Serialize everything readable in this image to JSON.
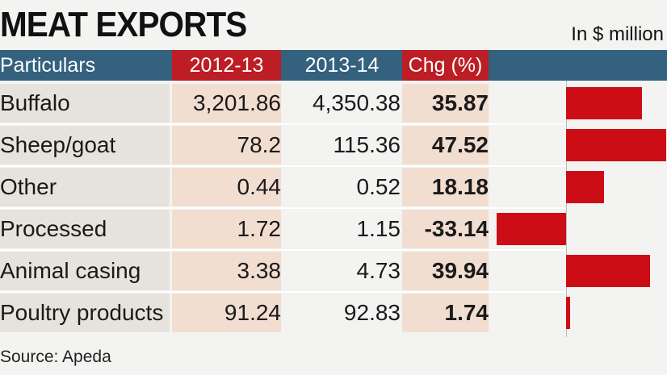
{
  "title": "MEAT EXPORTS",
  "unit": "In $ million",
  "header": {
    "particulars": "Particulars",
    "y1": "2012-13",
    "y2": "2013-14",
    "chg": "Chg (%)"
  },
  "source": "Source: Apeda",
  "colors": {
    "header_bg": "#34617e",
    "header_highlight": "#bd1d24",
    "bar": "#cc0d16"
  },
  "chart_data": {
    "type": "bar",
    "orientation": "horizontal",
    "title": "MEAT EXPORTS",
    "categories": [
      "Buffalo",
      "Sheep/goat",
      "Other",
      "Processed",
      "Animal casing",
      "Poultry products"
    ],
    "columns": [
      "2012-13",
      "2013-14",
      "Chg (%)"
    ],
    "rows": [
      {
        "label": "Buffalo",
        "y1": "3,201.86",
        "y2": "4,350.38",
        "chg": "35.87"
      },
      {
        "label": "Sheep/goat",
        "y1": "78.2",
        "y2": "115.36",
        "chg": "47.52"
      },
      {
        "label": "Other",
        "y1": "0.44",
        "y2": "0.52",
        "chg": "18.18"
      },
      {
        "label": "Processed",
        "y1": "1.72",
        "y2": "1.15",
        "chg": "-33.14"
      },
      {
        "label": "Animal casing",
        "y1": "3.38",
        "y2": "4.73",
        "chg": "39.94"
      },
      {
        "label": "Poultry products",
        "y1": "91.24",
        "y2": "92.83",
        "chg": "1.74"
      }
    ],
    "values": [
      35.87,
      47.52,
      18.18,
      -33.14,
      39.94,
      1.74
    ],
    "xlim": [
      -40,
      50
    ]
  }
}
